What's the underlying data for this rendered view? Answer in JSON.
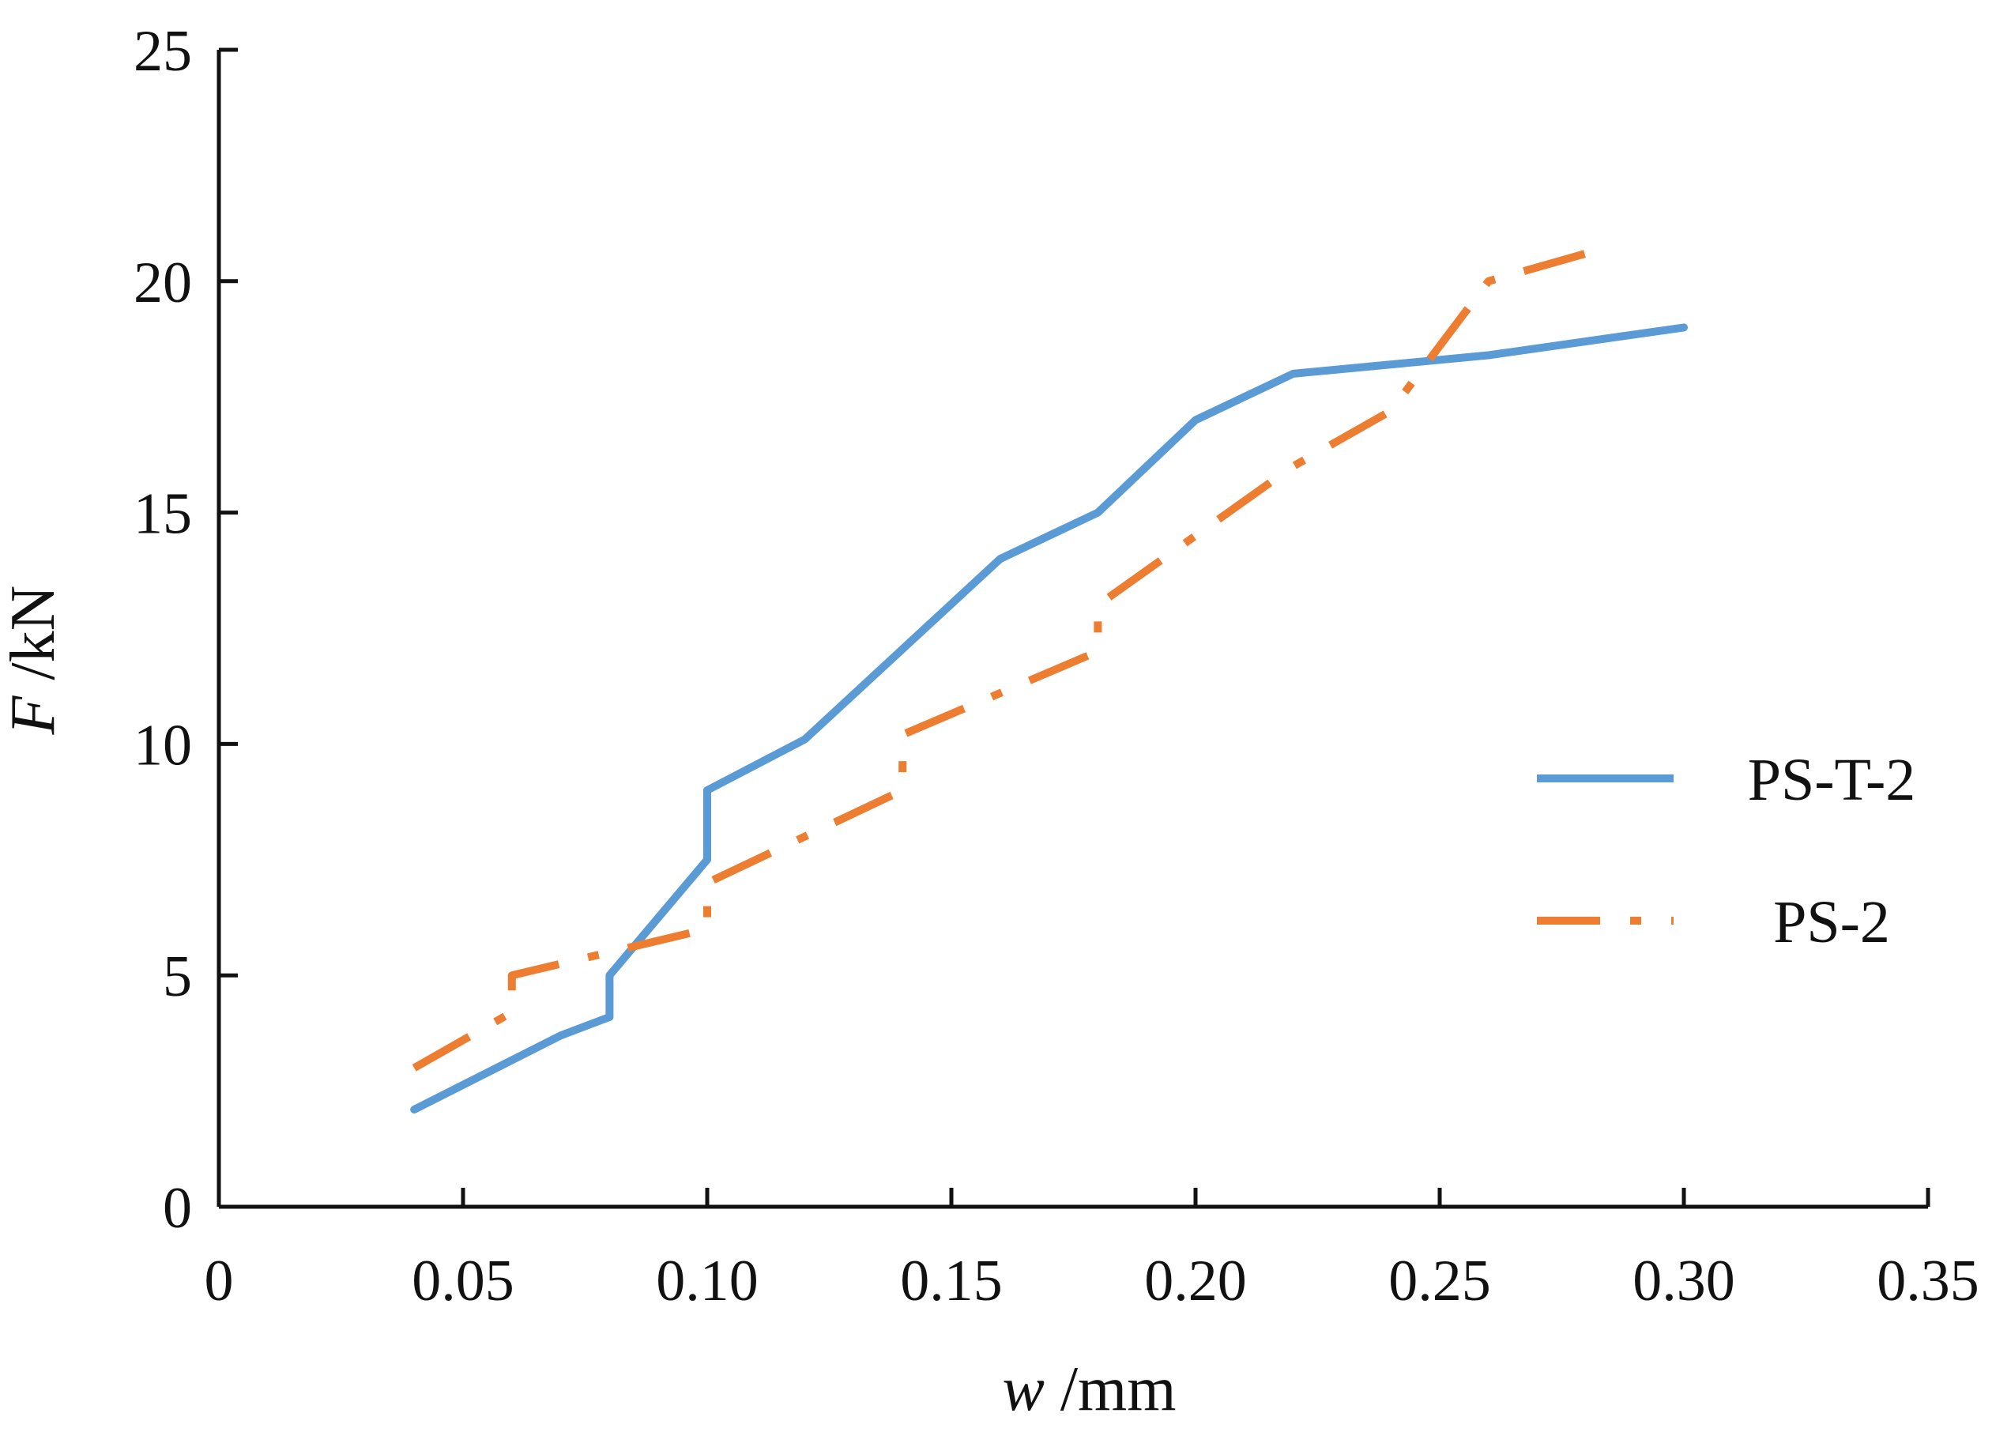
{
  "chart_data": {
    "type": "line",
    "title": "",
    "xlabel": {
      "var": "w",
      "unit": " /mm"
    },
    "ylabel": {
      "var": "F",
      "unit": " /kN"
    },
    "xlim": [
      0,
      0.35
    ],
    "ylim": [
      0,
      25
    ],
    "xticks": [
      0,
      0.05,
      0.1,
      0.15,
      0.2,
      0.25,
      0.3,
      0.35
    ],
    "xtick_labels": [
      "0",
      "0.05",
      "0.10",
      "0.15",
      "0.20",
      "0.25",
      "0.30",
      "0.35"
    ],
    "yticks": [
      0,
      5,
      10,
      15,
      20,
      25
    ],
    "ytick_labels": [
      "0",
      "5",
      "10",
      "15",
      "20",
      "25"
    ],
    "grid": false,
    "legend_position": "right",
    "series": [
      {
        "name": "PS-T-2",
        "color": "#5b9bd5",
        "style": "solid",
        "x": [
          0.04,
          0.07,
          0.08,
          0.08,
          0.1,
          0.1,
          0.12,
          0.16,
          0.18,
          0.2,
          0.22,
          0.26,
          0.3
        ],
        "y": [
          2.1,
          3.7,
          4.1,
          5.0,
          7.5,
          9.0,
          10.1,
          14.0,
          15.0,
          17.0,
          18.0,
          18.4,
          19.0
        ]
      },
      {
        "name": "PS-2",
        "color": "#ed7d31",
        "style": "dashed",
        "x": [
          0.04,
          0.06,
          0.06,
          0.08,
          0.1,
          0.1,
          0.12,
          0.14,
          0.14,
          0.18,
          0.18,
          0.22,
          0.24,
          0.26,
          0.28
        ],
        "y": [
          3.0,
          4.2,
          5.0,
          5.5,
          6.0,
          7.0,
          8.0,
          9.0,
          10.2,
          12.0,
          13.0,
          16.0,
          17.2,
          20.0,
          20.6
        ]
      }
    ]
  }
}
